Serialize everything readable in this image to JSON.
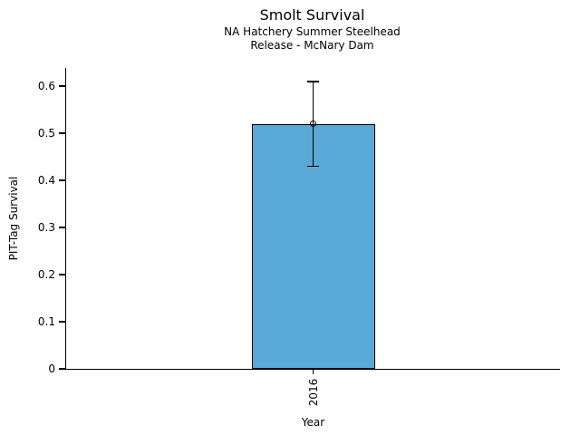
{
  "figure": {
    "title": "Smolt Survival",
    "subtitle_line1": "NA Hatchery Summer Steelhead",
    "subtitle_line2": "Release - McNary Dam"
  },
  "chart_data": {
    "type": "bar",
    "title": "Smolt Survival",
    "subtitle": [
      "NA Hatchery Summer Steelhead",
      "Release - McNary Dam"
    ],
    "xlabel": "Year",
    "ylabel": "PIT-Tag Survival",
    "categories": [
      "2016"
    ],
    "values": [
      0.52
    ],
    "error_bars": {
      "low": [
        0.43
      ],
      "high": [
        0.61
      ]
    },
    "yticks": [
      0,
      0.1,
      0.2,
      0.3,
      0.4,
      0.5,
      0.6
    ],
    "ytick_labels": [
      "0",
      "0.1",
      "0.2",
      "0.3",
      "0.4",
      "0.5",
      "0.6"
    ],
    "ylim": [
      0,
      0.64
    ],
    "grid": false,
    "legend": "none",
    "bar_color": "#58A9D5",
    "bar_edge_color": "#000000",
    "error_color": "#000000",
    "marker": "open-circle"
  }
}
